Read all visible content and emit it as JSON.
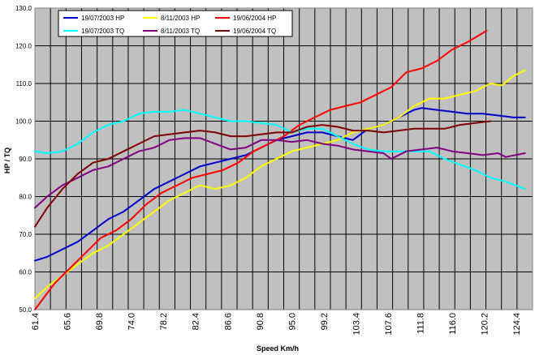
{
  "chart_data": {
    "type": "line",
    "xlabel": "Speed Km/h",
    "ylabel": "HP / TQ",
    "xlim": [
      61.4,
      126.5
    ],
    "ylim": [
      50,
      130
    ],
    "y_ticks": [
      "50.0",
      "60.0",
      "70.0",
      "80.0",
      "90.0",
      "100.0",
      "110.0",
      "120.0",
      "130.0"
    ],
    "x_ticks": [
      "61.4",
      "65.6",
      "69.8",
      "74.0",
      "78.2",
      "82.4",
      "86.6",
      "90.8",
      "95.0",
      "99.2",
      "103.4",
      "107.6",
      "111.8",
      "116.0",
      "120.2",
      "124.4"
    ],
    "grid": true,
    "plot_background": "#c0c0c0",
    "legend_position": "top-left",
    "series": [
      {
        "name": "19/07/2003 HP",
        "color": "#0000cc",
        "x": [
          61.4,
          63,
          65,
          67,
          69,
          71,
          73,
          75,
          77,
          79,
          81,
          83,
          85,
          87,
          89,
          91,
          93,
          95,
          97,
          99,
          101,
          103,
          105,
          107,
          109,
          111,
          112,
          114,
          116,
          118,
          120,
          122,
          124,
          125.5
        ],
        "y": [
          63,
          64,
          66,
          68,
          71,
          74,
          76,
          79,
          82,
          84,
          86,
          88,
          89,
          90,
          91,
          93,
          95,
          96,
          97,
          97,
          96,
          95,
          98,
          99,
          101,
          103,
          103.5,
          103,
          102.5,
          102,
          102,
          101.5,
          101,
          101
        ]
      },
      {
        "name": "8/11/2003 HP",
        "color": "#ffff00",
        "x": [
          61.4,
          63,
          65,
          67,
          69,
          71,
          73,
          75,
          77,
          79,
          81,
          83,
          85,
          87,
          89,
          91,
          93,
          95,
          97,
          99,
          101,
          103,
          105,
          107,
          109,
          111,
          113,
          115,
          117,
          119,
          121,
          122.5,
          124,
          125.5
        ],
        "y": [
          53,
          56,
          59,
          62,
          65,
          67,
          70,
          73,
          76,
          79,
          81,
          83,
          82,
          83,
          85,
          88,
          90,
          92,
          93,
          94,
          95,
          97,
          98,
          99,
          101,
          104,
          106,
          106,
          107,
          108,
          110,
          109.5,
          112,
          113.5
        ]
      },
      {
        "name": "19/06/2004 HP",
        "color": "#ff0000",
        "x": [
          61.4,
          62.5,
          64,
          66,
          68,
          70,
          72,
          74,
          76,
          78,
          80,
          82,
          84,
          86,
          88,
          90,
          92,
          94,
          96,
          98,
          100,
          102,
          104,
          106,
          108,
          110,
          112,
          114,
          116,
          118,
          120.5
        ],
        "y": [
          50,
          53,
          57,
          61,
          65,
          69,
          71,
          74,
          78,
          81,
          83,
          85,
          86,
          87,
          89,
          92,
          94,
          96,
          99,
          101,
          103,
          104,
          105,
          107,
          109,
          113,
          114,
          116,
          119,
          121,
          124
        ]
      },
      {
        "name": "19/07/2003 TQ",
        "color": "#00ffff",
        "x": [
          61.4,
          63,
          65,
          67,
          69,
          71,
          73,
          75,
          77,
          79,
          81,
          83,
          85,
          87,
          89,
          91,
          93,
          95,
          97,
          99,
          101,
          103,
          105,
          107,
          109,
          111,
          113,
          115,
          117,
          119,
          121,
          123,
          125.5
        ],
        "y": [
          92,
          91.5,
          92,
          94,
          97,
          99,
          100,
          102,
          102.5,
          102.5,
          103,
          102,
          101,
          100,
          100,
          99.5,
          99,
          97,
          98,
          98,
          96,
          94,
          92.5,
          92,
          92,
          92,
          92,
          90,
          88.5,
          87,
          85,
          84,
          82
        ]
      },
      {
        "name": "8/11/2003 TQ",
        "color": "#800080",
        "x": [
          61.4,
          63,
          65,
          67,
          69,
          71,
          73,
          75,
          77,
          79,
          81,
          83,
          85,
          87,
          89,
          91,
          93,
          95,
          97,
          99,
          101,
          103,
          105,
          107,
          108,
          110,
          112,
          114,
          116,
          118,
          120,
          122,
          123,
          125.5
        ],
        "y": [
          77,
          80,
          83,
          85,
          87,
          88,
          90,
          92,
          93,
          95,
          95.5,
          95.5,
          94,
          92.5,
          93,
          95,
          95,
          94.5,
          95,
          94,
          93.5,
          92.5,
          92,
          91.5,
          90,
          92,
          92.5,
          93,
          92,
          91.5,
          91,
          91.5,
          90.5,
          91.5
        ]
      },
      {
        "name": "19/06/2004 TQ",
        "color": "#800000",
        "x": [
          61.4,
          63,
          65,
          67,
          69,
          71,
          73,
          75,
          77,
          79,
          81,
          83,
          85,
          87,
          89,
          91,
          93,
          95,
          97,
          99,
          101,
          103,
          105,
          107,
          109,
          111,
          113,
          115,
          117,
          119,
          121
        ],
        "y": [
          72,
          77,
          82,
          86,
          89,
          90,
          92,
          94,
          96,
          96.5,
          97,
          97.5,
          97,
          96,
          96,
          96.5,
          97,
          97,
          98.5,
          99,
          98.5,
          97.5,
          97.5,
          97,
          97.5,
          98,
          98,
          98,
          99,
          99.5,
          100
        ]
      }
    ]
  }
}
